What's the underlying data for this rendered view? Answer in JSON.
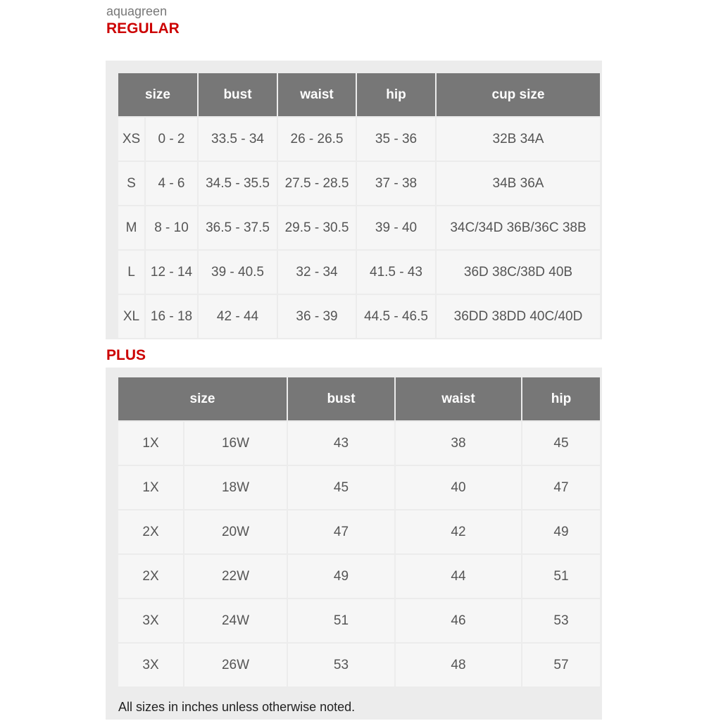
{
  "brand": "aquagreen",
  "regular": {
    "title": "REGULAR",
    "headers": [
      "size",
      "bust",
      "waist",
      "hip",
      "cup size"
    ],
    "rows": [
      [
        "XS",
        "0 - 2",
        "33.5 - 34",
        "26 - 26.5",
        "35 - 36",
        "32B 34A"
      ],
      [
        "S",
        "4 - 6",
        "34.5 - 35.5",
        "27.5 - 28.5",
        "37 - 38",
        "34B 36A"
      ],
      [
        "M",
        "8 - 10",
        "36.5 - 37.5",
        "29.5 - 30.5",
        "39 - 40",
        "34C/34D 36B/36C 38B"
      ],
      [
        "L",
        "12 - 14",
        "39 - 40.5",
        "32 - 34",
        "41.5 - 43",
        "36D 38C/38D 40B"
      ],
      [
        "XL",
        "16 - 18",
        "42 - 44",
        "36 - 39",
        "44.5 - 46.5",
        "36DD 38DD 40C/40D"
      ]
    ]
  },
  "plus": {
    "title": "PLUS",
    "headers": [
      "size",
      "bust",
      "waist",
      "hip"
    ],
    "rows": [
      [
        "1X",
        "16W",
        "43",
        "38",
        "45"
      ],
      [
        "1X",
        "18W",
        "45",
        "40",
        "47"
      ],
      [
        "2X",
        "20W",
        "47",
        "42",
        "49"
      ],
      [
        "2X",
        "22W",
        "49",
        "44",
        "51"
      ],
      [
        "3X",
        "24W",
        "51",
        "46",
        "53"
      ],
      [
        "3X",
        "26W",
        "53",
        "48",
        "57"
      ]
    ]
  },
  "footnote": "All sizes in inches unless otherwise noted."
}
